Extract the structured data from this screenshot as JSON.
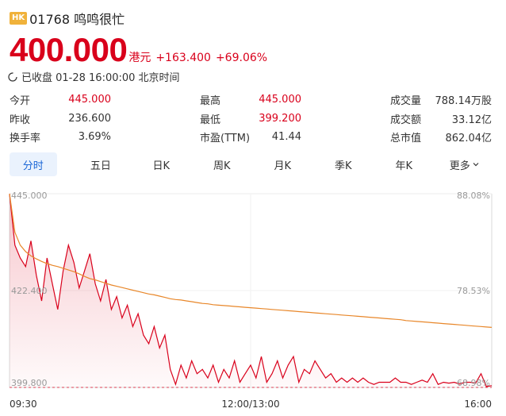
{
  "header": {
    "badge": "HK",
    "title": "01768 鸣鸣很忙"
  },
  "price": {
    "value": "400.000",
    "currency": "港元",
    "change": "+163.400",
    "change_pct": "+69.06%"
  },
  "status": {
    "text": "已收盘 01-28 16:00:00 北京时间"
  },
  "stats": {
    "col1": [
      {
        "label": "今开",
        "value": "445.000",
        "color": "red"
      },
      {
        "label": "昨收",
        "value": "236.600",
        "color": "plain"
      },
      {
        "label": "换手率",
        "value": "3.69%",
        "color": "plain"
      }
    ],
    "col2": [
      {
        "label": "最高",
        "value": "445.000",
        "color": "red"
      },
      {
        "label": "最低",
        "value": "399.200",
        "color": "red"
      },
      {
        "label": "市盈(TTM)",
        "value": "41.44",
        "color": "plain"
      }
    ],
    "col3": [
      {
        "label": "成交量",
        "value": "788.14万股",
        "color": "plain"
      },
      {
        "label": "成交额",
        "value": "33.12亿",
        "color": "plain"
      },
      {
        "label": "总市值",
        "value": "862.04亿",
        "color": "plain"
      }
    ]
  },
  "tabs": [
    "分时",
    "五日",
    "日K",
    "周K",
    "月K",
    "季K",
    "年K",
    "更多"
  ],
  "colors": {
    "up": "#d9001b",
    "avg": "#e8872a",
    "accent": "#1a66d6"
  },
  "chart_data": {
    "type": "line",
    "x_ticks": [
      "09:30",
      "12:00/13:00",
      "16:00"
    ],
    "y_left_ticks": [
      "445.000",
      "422.400",
      "399.800"
    ],
    "y_right_ticks": [
      "88.08%",
      "78.53%",
      "68.98%"
    ],
    "ylim": [
      399.8,
      445.0
    ],
    "reference_line": 399.8,
    "series": [
      {
        "values": [
          445.0,
          433,
          430,
          428,
          434,
          426,
          420,
          430,
          424,
          418,
          427,
          433,
          429,
          423,
          427,
          431,
          424,
          420,
          425,
          418,
          421,
          416,
          419,
          414,
          417,
          412,
          410,
          414,
          409,
          412,
          404,
          400.5,
          405,
          402,
          406,
          403,
          404,
          402,
          405,
          401,
          404,
          402,
          406,
          401,
          403,
          405,
          402,
          407,
          401,
          403,
          406,
          402,
          405,
          407,
          401,
          404,
          403,
          406,
          404,
          402,
          403,
          401,
          402,
          401,
          402,
          401,
          402,
          401,
          400.5,
          401,
          401,
          401,
          402,
          401,
          401,
          400.5,
          401,
          401.5,
          401,
          403,
          400.5,
          401,
          400.8,
          401,
          400.6,
          401,
          401,
          400.8,
          403,
          400,
          400.2
        ]
      },
      {
        "values": [
          445.0,
          436,
          433,
          431.5,
          430.5,
          429.8,
          429.2,
          428.7,
          428.3,
          428,
          427.6,
          427.2,
          426.8,
          426.3,
          425.7,
          425.2,
          424.9,
          424.5,
          424.1,
          423.7,
          423.4,
          423.1,
          422.8,
          422.5,
          422.2,
          421.9,
          421.6,
          421.4,
          421.1,
          420.8,
          420.5,
          420.3,
          420.2,
          420,
          419.8,
          419.6,
          419.4,
          419.3,
          419.1,
          419,
          418.9,
          418.8,
          418.7,
          418.6,
          418.5,
          418.4,
          418.3,
          418.2,
          418.1,
          418,
          417.9,
          417.8,
          417.7,
          417.6,
          417.5,
          417.4,
          417.3,
          417.2,
          417.1,
          417,
          416.9,
          416.8,
          416.7,
          416.6,
          416.5,
          416.4,
          416.3,
          416.2,
          416.1,
          416,
          415.9,
          415.8,
          415.7,
          415.6,
          415.4,
          415.3,
          415.2,
          415.1,
          415,
          414.9,
          414.8,
          414.7,
          414.6,
          414.5,
          414.4,
          414.3,
          414.2,
          414.1,
          414,
          413.9,
          413.8
        ]
      }
    ]
  }
}
